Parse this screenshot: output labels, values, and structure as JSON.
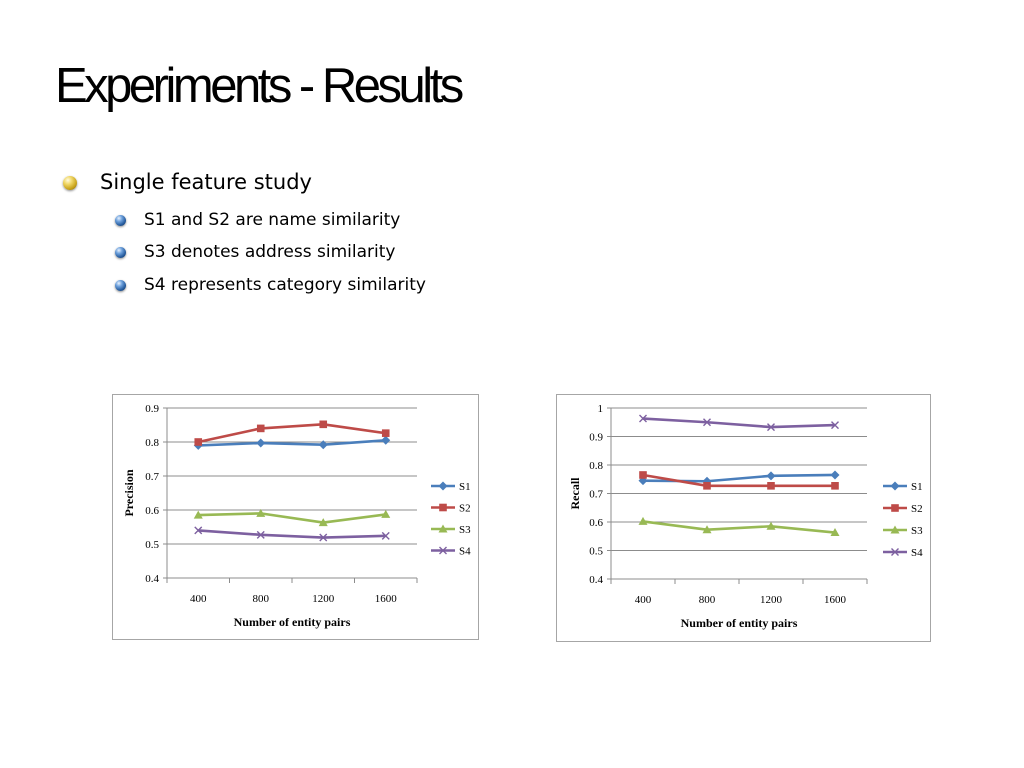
{
  "slide": {
    "title": "Experiments - Results",
    "bullets": [
      {
        "level": 1,
        "text": "Single feature study"
      },
      {
        "level": 2,
        "text": "S1  and S2 are name similarity"
      },
      {
        "level": 2,
        "text": "S3 denotes address similarity"
      },
      {
        "level": 2,
        "text": "S4 represents category similarity"
      }
    ]
  },
  "colors": {
    "S1": "#4a7ebb",
    "S2": "#be4b48",
    "S3": "#98b954",
    "S4": "#7d60a0"
  },
  "chart_data": [
    {
      "type": "line",
      "title": "",
      "xlabel": "Number of  entity pairs",
      "ylabel": "Precision",
      "categories": [
        "400",
        "800",
        "1200",
        "1600"
      ],
      "ylim": [
        0.4,
        0.9
      ],
      "yticks": [
        "0.4",
        "0.5",
        "0.6",
        "0.7",
        "0.8",
        "0.9"
      ],
      "grid": true,
      "legend": "right",
      "series": [
        {
          "name": "S1",
          "marker": "diamond",
          "values": [
            0.79,
            0.797,
            0.792,
            0.805
          ]
        },
        {
          "name": "S2",
          "marker": "square",
          "values": [
            0.8,
            0.84,
            0.852,
            0.826
          ]
        },
        {
          "name": "S3",
          "marker": "triangle",
          "values": [
            0.585,
            0.59,
            0.563,
            0.587
          ]
        },
        {
          "name": "S4",
          "marker": "x",
          "values": [
            0.54,
            0.527,
            0.519,
            0.524
          ]
        }
      ]
    },
    {
      "type": "line",
      "title": "",
      "xlabel": "Number of entity pairs",
      "ylabel": "Recall",
      "categories": [
        "400",
        "800",
        "1200",
        "1600"
      ],
      "ylim": [
        0.4,
        1.0
      ],
      "yticks": [
        "0.4",
        "0.5",
        "0.6",
        "0.7",
        "0.8",
        "0.9",
        "1"
      ],
      "grid": true,
      "legend": "right",
      "series": [
        {
          "name": "S1",
          "marker": "diamond",
          "values": [
            0.745,
            0.743,
            0.762,
            0.765
          ]
        },
        {
          "name": "S2",
          "marker": "square",
          "values": [
            0.765,
            0.727,
            0.727,
            0.727
          ]
        },
        {
          "name": "S3",
          "marker": "triangle",
          "values": [
            0.602,
            0.573,
            0.585,
            0.563
          ]
        },
        {
          "name": "S4",
          "marker": "x",
          "values": [
            0.963,
            0.95,
            0.933,
            0.94
          ]
        }
      ]
    }
  ]
}
